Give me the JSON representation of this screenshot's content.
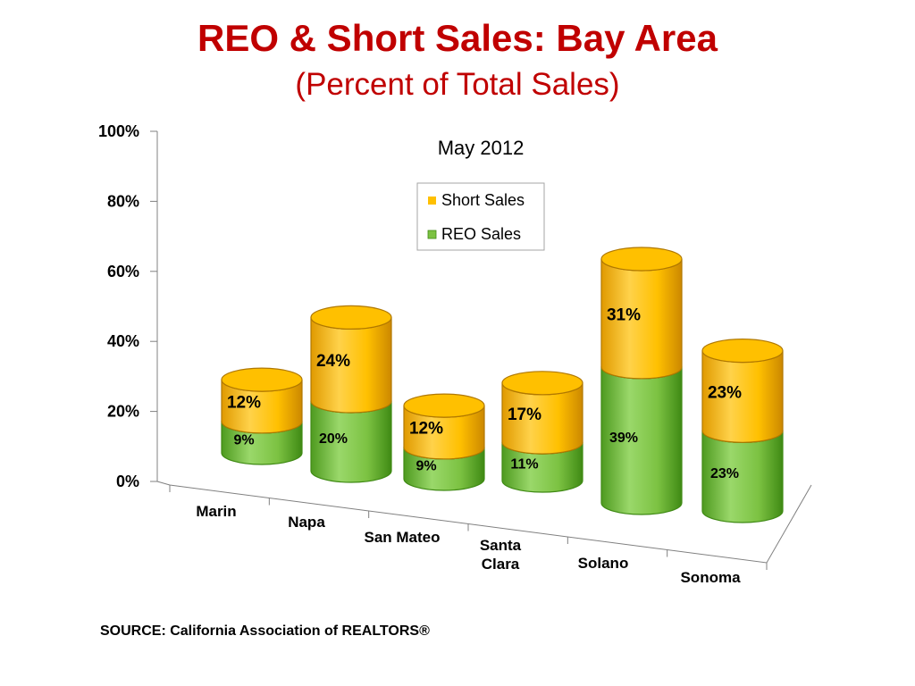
{
  "slide": {
    "title": "REO & Short Sales: Bay Area",
    "subtitle": "(Percent of Total Sales)",
    "source": "SOURCE: California Association of REALTORS®"
  },
  "chart_data": {
    "type": "bar",
    "stacked": true,
    "style": "3d-cylinder",
    "title": "May 2012",
    "categories": [
      "Marin",
      "Napa",
      "San Mateo",
      "Santa Clara",
      "Solano",
      "Sonoma"
    ],
    "series": [
      {
        "name": "REO Sales",
        "values": [
          9,
          20,
          9,
          11,
          39,
          23
        ],
        "labels": [
          "9%",
          "20%",
          "9%",
          "11%",
          "39%",
          "23%"
        ],
        "color": "#7cc242"
      },
      {
        "name": "Short Sales",
        "values": [
          12,
          24,
          12,
          17,
          31,
          23
        ],
        "labels": [
          "12%",
          "24%",
          "12%",
          "17%",
          "31%",
          "23%"
        ],
        "color": "#ffc000"
      }
    ],
    "y_ticks": [
      "0%",
      "20%",
      "40%",
      "60%",
      "80%",
      "100%"
    ],
    "ylim": [
      0,
      100
    ],
    "legend": {
      "placement": "top-right",
      "entries": [
        "Short Sales",
        "REO Sales"
      ]
    },
    "grid": false
  }
}
